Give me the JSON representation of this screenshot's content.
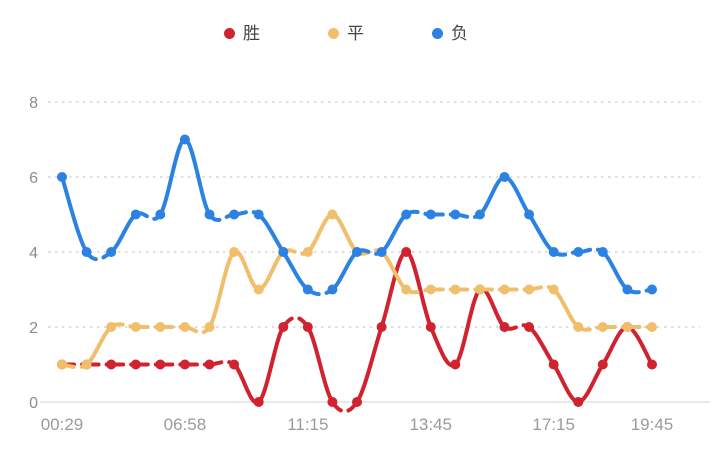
{
  "legend": {
    "items": [
      {
        "key": "win",
        "label": "胜"
      },
      {
        "key": "draw",
        "label": "平"
      },
      {
        "key": "lose",
        "label": "负"
      }
    ]
  },
  "chart_data": {
    "type": "line",
    "title": "",
    "xlabel": "",
    "ylabel": "",
    "num_points": 25,
    "x_tick_labels": [
      "00:29",
      "06:58",
      "11:15",
      "13:45",
      "17:15",
      "19:45"
    ],
    "x_tick_indices": [
      0,
      5,
      10,
      15,
      20,
      24
    ],
    "y_tick_labels": [
      "0",
      "2",
      "4",
      "6",
      "8"
    ],
    "y_ticks": [
      0,
      2,
      4,
      6,
      8
    ],
    "ylim": [
      0,
      8
    ],
    "grid": "horizontal dotted gridlines, solid baseline at 0",
    "legend_position": "top-center",
    "line_style": "smooth spline, dashed segments between equal values, solid on slopes, round dot markers",
    "series": [
      {
        "key": "win",
        "name": "胜",
        "color": "#d0222f",
        "values": [
          1,
          1,
          1,
          1,
          1,
          1,
          1,
          1,
          0,
          2,
          2,
          0,
          0,
          2,
          4,
          2,
          1,
          3,
          2,
          2,
          1,
          0,
          1,
          2,
          1
        ]
      },
      {
        "key": "draw",
        "name": "平",
        "color": "#f1bf6b",
        "values": [
          1,
          1,
          2,
          2,
          2,
          2,
          2,
          4,
          3,
          4,
          4,
          5,
          4,
          4,
          3,
          3,
          3,
          3,
          3,
          3,
          3,
          2,
          2,
          2,
          2
        ]
      },
      {
        "key": "lose",
        "name": "负",
        "color": "#2b82e2",
        "values": [
          6,
          4,
          4,
          5,
          5,
          7,
          5,
          5,
          5,
          4,
          3,
          3,
          4,
          4,
          5,
          5,
          5,
          5,
          6,
          5,
          4,
          4,
          4,
          3,
          3
        ]
      }
    ]
  },
  "style": {
    "grid_color": "#e0e0e0",
    "axis_line_color": "#e9e9e9",
    "y_label_color": "#8c8c8c",
    "x_label_color": "#9b9b9b",
    "legend_text_color": "#454545",
    "background": "#ffffff"
  }
}
